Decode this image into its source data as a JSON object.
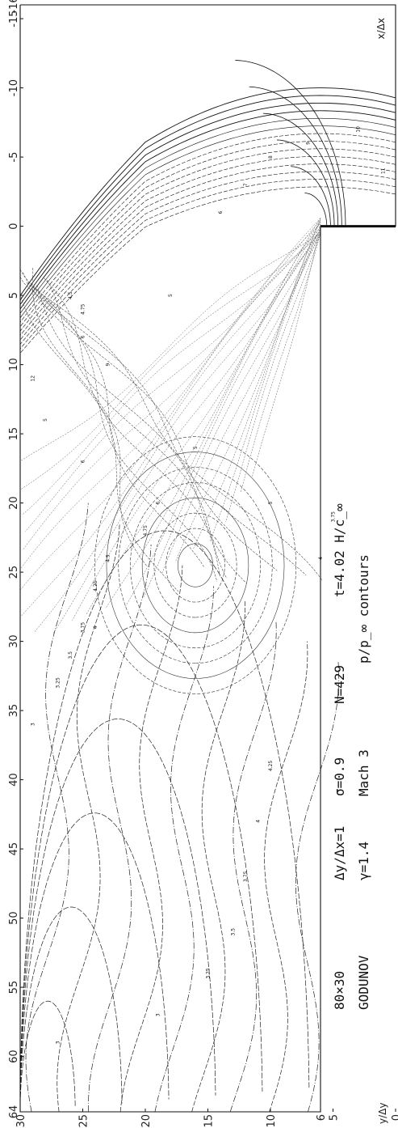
{
  "chart_data": {
    "type": "contour",
    "title": "p/p_∞ contours",
    "xlabel": "x/Δx",
    "ylabel": "y/Δy",
    "xlim": [
      -16,
      64
    ],
    "ylim": [
      0,
      30
    ],
    "x_ticks": [
      "-16",
      "-15",
      "-10",
      "-5",
      "0",
      "5",
      "10",
      "15",
      "20",
      "25",
      "30",
      "35",
      "40",
      "45",
      "50",
      "55",
      "60",
      "64"
    ],
    "y_ticks": [
      "30",
      "25",
      "20",
      "15",
      "10",
      "6",
      "5",
      "0"
    ],
    "step": {
      "x": 0,
      "y": 6
    },
    "caption": [
      [
        "GODUNOV",
        "γ=1.4",
        "Mach 3",
        "p/p_∞ contours"
      ],
      [
        "80×30",
        "Δy/Δx=1",
        "σ=0.9",
        "N=429",
        "t=4.02 H/c_∞"
      ]
    ],
    "contour_labels": [
      {
        "text": "3",
        "x": 59,
        "y": 27
      },
      {
        "text": "3",
        "x": 57,
        "y": 19
      },
      {
        "text": "3.25",
        "x": 54,
        "y": 15
      },
      {
        "text": "3.5",
        "x": 51,
        "y": 13
      },
      {
        "text": "3.75",
        "x": 47,
        "y": 12
      },
      {
        "text": "4",
        "x": 43,
        "y": 11
      },
      {
        "text": "4.25",
        "x": 39,
        "y": 10
      },
      {
        "text": "4",
        "x": 24,
        "y": 6
      },
      {
        "text": "3.75",
        "x": 21,
        "y": 5
      },
      {
        "text": "3",
        "x": 36,
        "y": 29
      },
      {
        "text": "3.25",
        "x": 33,
        "y": 27
      },
      {
        "text": "3.5",
        "x": 31,
        "y": 26
      },
      {
        "text": "3.75",
        "x": 29,
        "y": 25
      },
      {
        "text": "4",
        "x": 29,
        "y": 24
      },
      {
        "text": "4.25",
        "x": 26,
        "y": 24
      },
      {
        "text": "4.5",
        "x": 24,
        "y": 23
      },
      {
        "text": "4.75",
        "x": 22,
        "y": 20
      },
      {
        "text": "6",
        "x": 20,
        "y": 19
      },
      {
        "text": "6",
        "x": 17,
        "y": 25
      },
      {
        "text": "5",
        "x": 14,
        "y": 28
      },
      {
        "text": "12",
        "x": 11,
        "y": 29
      },
      {
        "text": "9",
        "x": 10,
        "y": 23
      },
      {
        "text": "6",
        "x": 8,
        "y": 25
      },
      {
        "text": "5",
        "x": 5,
        "y": 18
      },
      {
        "text": "4.5",
        "x": 5,
        "y": 26
      },
      {
        "text": "4.75",
        "x": 6,
        "y": 25
      },
      {
        "text": "5",
        "x": 16,
        "y": 16
      },
      {
        "text": "5",
        "x": 20,
        "y": 10
      },
      {
        "text": "6",
        "x": -1,
        "y": 14
      },
      {
        "text": "7",
        "x": -3,
        "y": 12
      },
      {
        "text": "8",
        "x": -5,
        "y": 10
      },
      {
        "text": "9",
        "x": -6,
        "y": 7
      },
      {
        "text": "10",
        "x": -7,
        "y": 3
      },
      {
        "text": "11",
        "x": -4,
        "y": 1
      }
    ]
  }
}
